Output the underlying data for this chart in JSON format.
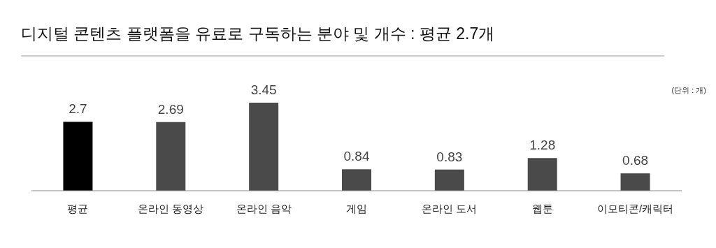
{
  "chart_data": {
    "type": "bar",
    "title": "디지털 콘텐츠 플랫폼을 유료로 구독하는 분야 및 개수 : 평균 2.7개",
    "categories": [
      "평균",
      "온라인 동영상",
      "온라인 음악",
      "게임",
      "온라인 도서",
      "웹툰",
      "이모티콘/캐릭터"
    ],
    "values": [
      2.7,
      2.69,
      3.45,
      0.84,
      0.83,
      1.28,
      0.68
    ],
    "colors": [
      "#000000",
      "#4a4a4a",
      "#4a4a4a",
      "#4a4a4a",
      "#4a4a4a",
      "#4a4a4a",
      "#4a4a4a"
    ],
    "data_labels": true,
    "annotations": [
      "(단위 : 개)"
    ]
  }
}
